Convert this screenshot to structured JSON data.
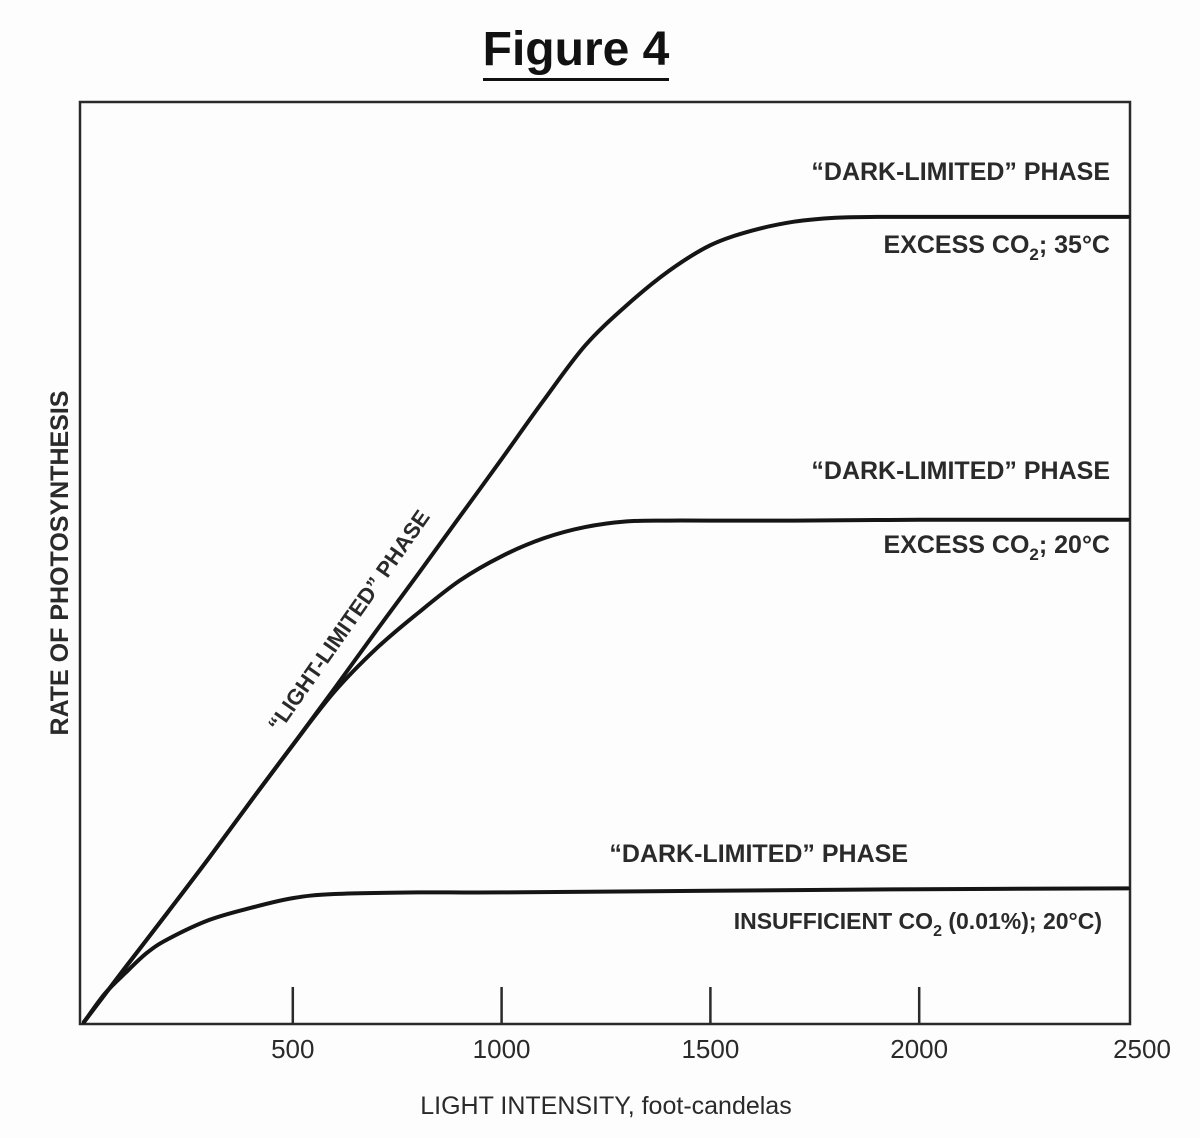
{
  "figure": {
    "title": "Figure 4"
  },
  "chart_data": {
    "type": "line",
    "xlabel": "LIGHT INTENSITY, foot-candelas",
    "ylabel": "RATE OF PHOTOSYNTHESIS",
    "xlim": [
      0,
      2500
    ],
    "ylim": [
      0,
      100
    ],
    "x_ticks": [
      "500",
      "1000",
      "1500",
      "2000",
      "2500"
    ],
    "x_tick_values": [
      500,
      1000,
      1500,
      2000,
      2500
    ],
    "grid": false,
    "line_color": "#151515",
    "annotations": {
      "light_limited": "“LIGHT-LIMITED” PHASE"
    },
    "series": [
      {
        "dark_phase_label": "“DARK-LIMITED” PHASE",
        "condition_pre": "EXCESS CO",
        "condition_sub": "2",
        "condition_post": "; 35°C",
        "x": [
          0,
          100,
          200,
          300,
          400,
          500,
          600,
          700,
          800,
          900,
          1000,
          1100,
          1200,
          1300,
          1400,
          1500,
          1600,
          1700,
          1800,
          1900,
          2000,
          2100,
          2200,
          2300,
          2400,
          2500
        ],
        "y": [
          0,
          6.8,
          13.5,
          20.3,
          27.3,
          34.2,
          41.2,
          48.3,
          55.3,
          62.4,
          69.5,
          76.7,
          83.5,
          88.5,
          92.7,
          95.9,
          97.7,
          98.8,
          99.3,
          99.4,
          99.4,
          99.4,
          99.4,
          99.4,
          99.4,
          99.4
        ]
      },
      {
        "dark_phase_label": "“DARK-LIMITED” PHASE",
        "condition_pre": "EXCESS CO",
        "condition_sub": "2",
        "condition_post": "; 20°C",
        "x": [
          0,
          100,
          200,
          300,
          400,
          500,
          600,
          700,
          800,
          900,
          1000,
          1100,
          1200,
          1300,
          1400,
          1500,
          1700,
          2000,
          2300,
          2500
        ],
        "y": [
          0,
          6.8,
          13.5,
          20.3,
          27.3,
          34.2,
          40.8,
          46.1,
          50.5,
          54.5,
          57.5,
          59.7,
          61.1,
          61.8,
          61.9,
          61.9,
          61.9,
          62.0,
          62.0,
          62.0
        ]
      },
      {
        "dark_phase_label": "“DARK-LIMITED” PHASE",
        "condition_pre": "INSUFFICIENT CO",
        "condition_sub": "2",
        "condition_post": " (0.01%); 20°C)",
        "x": [
          0,
          50,
          100,
          150,
          200,
          300,
          400,
          500,
          600,
          800,
          1000,
          1500,
          2000,
          2500
        ],
        "y": [
          0,
          3.5,
          6.1,
          8.5,
          10.2,
          12.6,
          14.1,
          15.3,
          15.8,
          16.0,
          16.0,
          16.2,
          16.4,
          16.5
        ]
      }
    ]
  }
}
